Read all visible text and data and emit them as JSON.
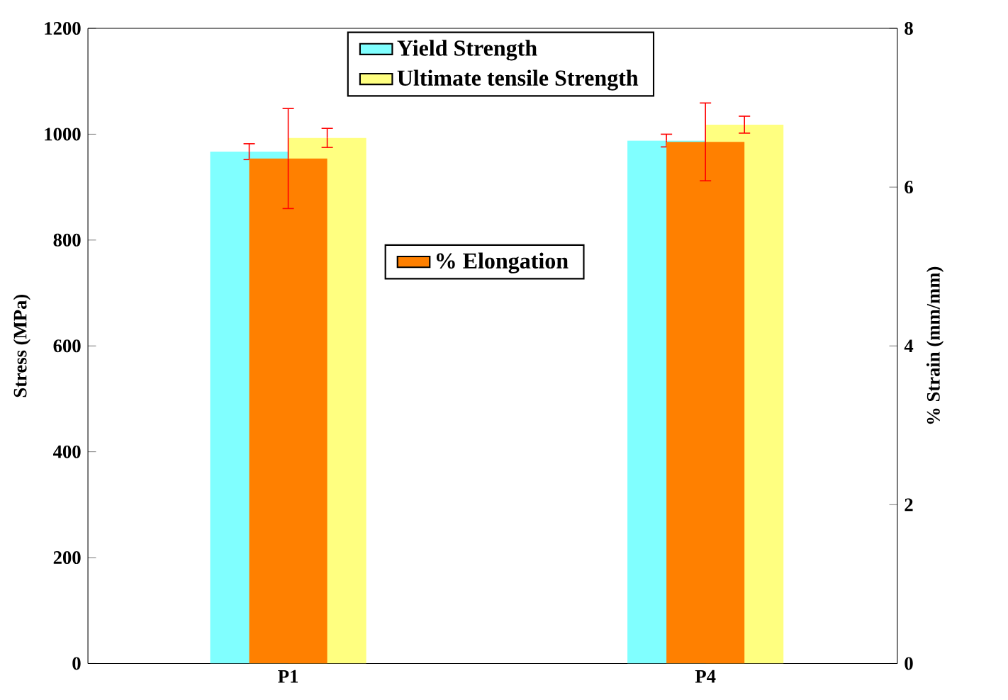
{
  "chart_data": {
    "type": "bar",
    "ylabel": "Stress (MPa)",
    "y2label": "% Strain (mm/mm)",
    "categories": [
      "P1",
      "P4"
    ],
    "series": [
      {
        "name": "Yield Strength",
        "color": "#80ffff",
        "values": [
          967,
          988
        ],
        "errors": [
          15,
          12
        ]
      },
      {
        "name": "Ultimate tensile Strength",
        "color": "#ffff80",
        "values": [
          993,
          1018
        ],
        "errors": [
          18,
          16
        ]
      },
      {
        "name": "% Elongation",
        "color": "#ff8000",
        "values": [
          6.36,
          6.57
        ],
        "errors": [
          0.63,
          0.49
        ],
        "axis": "y2"
      }
    ],
    "ylim": [
      0,
      1200
    ],
    "yticks": [
      0,
      200,
      400,
      600,
      800,
      1000,
      1200
    ],
    "y2lim": [
      0,
      8
    ],
    "y2ticks": [
      0,
      2,
      4,
      6,
      8
    ],
    "grid": false,
    "legend": "top"
  }
}
